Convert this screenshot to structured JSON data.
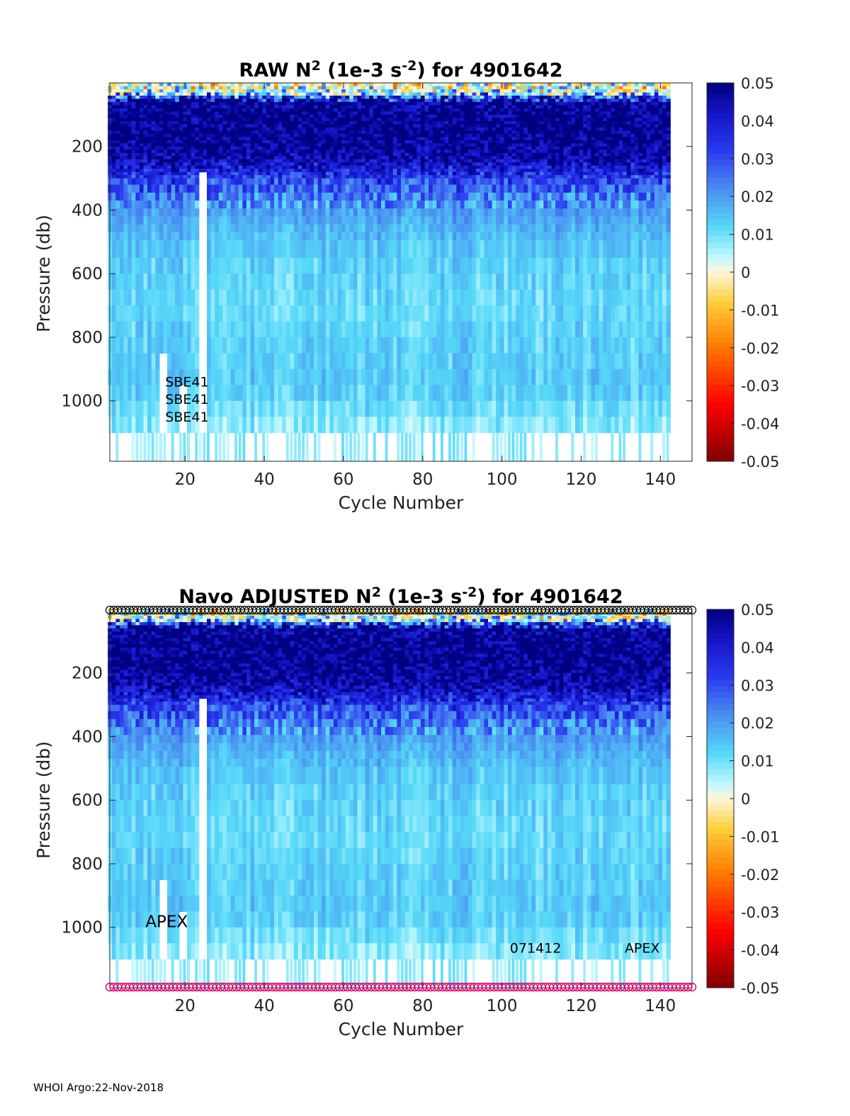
{
  "footer": "WHOI Argo:22-Nov-2018",
  "colormap": {
    "stops": [
      {
        "v": -0.05,
        "c": "#7f0000"
      },
      {
        "v": -0.035,
        "c": "#ff0000"
      },
      {
        "v": -0.02,
        "c": "#ff7800"
      },
      {
        "v": -0.008,
        "c": "#ffcf3a"
      },
      {
        "v": 0.0,
        "c": "#fff7dc"
      },
      {
        "v": 0.004,
        "c": "#bff8ff"
      },
      {
        "v": 0.012,
        "c": "#55d8f8"
      },
      {
        "v": 0.022,
        "c": "#4a8ef0"
      },
      {
        "v": 0.032,
        "c": "#2a3af0"
      },
      {
        "v": 0.042,
        "c": "#1414c8"
      },
      {
        "v": 0.05,
        "c": "#000080"
      }
    ]
  },
  "chart_data": [
    {
      "type": "heatmap",
      "title_parts": [
        "RAW N",
        "2",
        " (1e-3 s",
        "-2",
        ") for 4901642"
      ],
      "xlabel": "Cycle Number",
      "ylabel": "Pressure (db)",
      "xlim": [
        1,
        148
      ],
      "ylim": [
        1190,
        0
      ],
      "xticks": [
        20,
        40,
        60,
        80,
        100,
        120,
        140
      ],
      "yticks": [
        200,
        400,
        600,
        800,
        1000
      ],
      "colorbar": {
        "clim": [
          -0.05,
          0.05
        ],
        "ticks": [
          "0.05",
          "0.04",
          "0.03",
          "0.02",
          "0.01",
          "0",
          "-0.01",
          "-0.02",
          "-0.03",
          "-0.04",
          "-0.05"
        ]
      },
      "depth_profile": [
        {
          "p": 20,
          "v": 0.003
        },
        {
          "p": 60,
          "v": 0.048
        },
        {
          "p": 150,
          "v": 0.05
        },
        {
          "p": 230,
          "v": 0.047
        },
        {
          "p": 300,
          "v": 0.033
        },
        {
          "p": 380,
          "v": 0.021
        },
        {
          "p": 450,
          "v": 0.017
        },
        {
          "p": 550,
          "v": 0.013
        },
        {
          "p": 700,
          "v": 0.011
        },
        {
          "p": 850,
          "v": 0.013
        },
        {
          "p": 950,
          "v": 0.014
        },
        {
          "p": 1050,
          "v": 0.009
        },
        {
          "p": 1100,
          "v": 0.007
        }
      ],
      "last_cycle": 142,
      "annotations": [
        {
          "text": "SBE41",
          "x": 15,
          "p": 955
        },
        {
          "text": "SBE41",
          "x": 15,
          "p": 1010
        },
        {
          "text": "SBE41",
          "x": 15,
          "p": 1065
        }
      ],
      "markers": null
    },
    {
      "type": "heatmap",
      "title_parts": [
        "Navo  ADJUSTED N",
        "2",
        " (1e-3 s",
        "-2",
        ") for 4901642"
      ],
      "xlabel": "Cycle Number",
      "ylabel": "Pressure (db)",
      "xlim": [
        1,
        148
      ],
      "ylim": [
        1190,
        0
      ],
      "xticks": [
        20,
        40,
        60,
        80,
        100,
        120,
        140
      ],
      "yticks": [
        200,
        400,
        600,
        800,
        1000
      ],
      "colorbar": {
        "clim": [
          -0.05,
          0.05
        ],
        "ticks": [
          "0.05",
          "0.04",
          "0.03",
          "0.02",
          "0.01",
          "0",
          "-0.01",
          "-0.02",
          "-0.03",
          "-0.04",
          "-0.05"
        ]
      },
      "depth_profile": [
        {
          "p": 20,
          "v": 0.003
        },
        {
          "p": 60,
          "v": 0.048
        },
        {
          "p": 150,
          "v": 0.05
        },
        {
          "p": 230,
          "v": 0.047
        },
        {
          "p": 300,
          "v": 0.033
        },
        {
          "p": 380,
          "v": 0.021
        },
        {
          "p": 450,
          "v": 0.017
        },
        {
          "p": 550,
          "v": 0.013
        },
        {
          "p": 700,
          "v": 0.011
        },
        {
          "p": 850,
          "v": 0.013
        },
        {
          "p": 950,
          "v": 0.014
        },
        {
          "p": 1050,
          "v": 0.009
        },
        {
          "p": 1100,
          "v": 0.007
        }
      ],
      "last_cycle": 142,
      "annotations": [
        {
          "text": "APEX",
          "x": 10,
          "p": 1000,
          "big": true
        },
        {
          "text": "071412",
          "x": 102,
          "p": 1080
        },
        {
          "text": "APEX",
          "x": 131,
          "p": 1080
        }
      ],
      "markers": {
        "top_color": "#000000",
        "bottom_color": "#e0006a",
        "first": 1,
        "last": 148
      }
    }
  ]
}
